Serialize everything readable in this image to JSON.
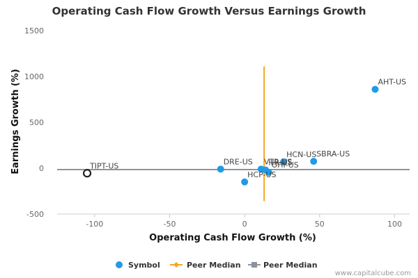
{
  "chart_data": {
    "type": "scatter",
    "title": "Operating Cash Flow Growth Versus Earnings Growth",
    "xlabel": "Operating Cash Flow Growth (%)",
    "ylabel": "Earnings Growth (%)",
    "xlim": [
      -125,
      110
    ],
    "ylim": [
      -500,
      1500
    ],
    "x_ticks": [
      -100,
      -50,
      0,
      50,
      100
    ],
    "y_ticks": [
      -500,
      0,
      500,
      1000,
      1500
    ],
    "grid": false,
    "legend_placement": "bottom-center",
    "series": [
      {
        "name": "Symbol",
        "color": "#1f9be8",
        "points": [
          {
            "label": "AHT-US",
            "x": 87,
            "y": 860
          },
          {
            "label": "SBRA-US",
            "x": 46,
            "y": 75
          },
          {
            "label": "HCN-US",
            "x": 26,
            "y": 70
          },
          {
            "label": "VTR-US",
            "x": 11,
            "y": -10
          },
          {
            "label": "HR-US",
            "x": 14,
            "y": -20
          },
          {
            "label": "OHI-US",
            "x": 16,
            "y": -45
          },
          {
            "label": "DRE-US",
            "x": -16,
            "y": -10
          },
          {
            "label": "HCP-US",
            "x": 0,
            "y": -150
          }
        ]
      },
      {
        "name": "",
        "color": "#222222",
        "points": [
          {
            "label": "TIPT-US",
            "x": -105,
            "y": -55
          }
        ]
      }
    ],
    "peer_median_x": {
      "name": "Peer Median",
      "value": 13,
      "y_range": [
        -360,
        1110
      ],
      "color": "#f5a623"
    },
    "peer_median_y": {
      "name": "Peer Median",
      "value": -15,
      "color": "#8c939b"
    }
  },
  "legend": [
    {
      "label": "Symbol",
      "kind": "dot",
      "color": "#1f9be8"
    },
    {
      "label": "Peer Median",
      "kind": "orange-line",
      "color": "#f5a623"
    },
    {
      "label": "Peer Median",
      "kind": "gray-line",
      "color": "#8c939b"
    }
  ],
  "credit": "www.capitalcube.com"
}
